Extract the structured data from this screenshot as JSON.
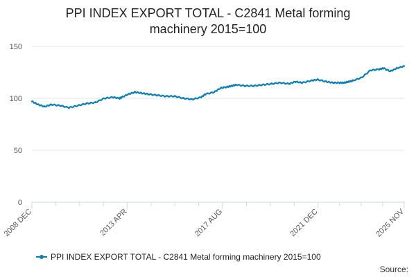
{
  "title_line1": "PPI INDEX EXPORT TOTAL - C2841 Metal forming",
  "title_line2": "machinery 2015=100",
  "legend_label": "PPI INDEX EXPORT TOTAL - C2841 Metal forming machinery 2015=100",
  "source_label": "Source:",
  "colors": {
    "series": "#0b7fb6",
    "grid": "#e6e6e6",
    "axis": "#ccd6eb"
  },
  "chart_data": {
    "type": "line",
    "title": "PPI INDEX EXPORT TOTAL - C2841 Metal forming machinery 2015=100",
    "xlabel": "",
    "ylabel": "",
    "ylim": [
      0,
      150
    ],
    "y_ticks": [
      0,
      50,
      100,
      150
    ],
    "x_tick_labels": [
      "2008 DEC",
      "2013 APR",
      "2017 AUG",
      "2021 DEC",
      "2025 NOV"
    ],
    "x_tick_values": [
      2008.917,
      2013.25,
      2017.583,
      2021.917,
      2025.833
    ],
    "grid": true,
    "legend_position": "bottom",
    "series": [
      {
        "name": "PPI INDEX EXPORT TOTAL - C2841 Metal forming machinery 2015=100",
        "x": [
          2008.917,
          2009.2,
          2009.5,
          2009.8,
          2010.2,
          2010.6,
          2011.0,
          2011.4,
          2011.8,
          2012.2,
          2012.6,
          2012.9,
          2013.0,
          2013.3,
          2013.6,
          2013.9,
          2014.2,
          2014.6,
          2015.0,
          2015.4,
          2015.8,
          2016.2,
          2016.6,
          2016.8,
          2017.2,
          2017.5,
          2017.8,
          2018.0,
          2018.2,
          2018.6,
          2019.0,
          2019.4,
          2019.8,
          2020.2,
          2020.6,
          2020.9,
          2021.2,
          2021.6,
          2021.9,
          2022.3,
          2022.6,
          2022.9,
          2023.1,
          2023.3,
          2023.5,
          2023.9,
          2024.3,
          2024.7,
          2024.9,
          2025.2,
          2025.5,
          2025.833
        ],
        "y": [
          97,
          94,
          92,
          94,
          93,
          91,
          93,
          95,
          96,
          100,
          101,
          100,
          101,
          104,
          106,
          105,
          104,
          103,
          102,
          102,
          100,
          99,
          101,
          104,
          106,
          110,
          111,
          112,
          113,
          112,
          112,
          113,
          114,
          115,
          114,
          116,
          115,
          117,
          118,
          116,
          115,
          115,
          115,
          116,
          117,
          120,
          127,
          128,
          129,
          126,
          129,
          131
        ]
      }
    ]
  }
}
